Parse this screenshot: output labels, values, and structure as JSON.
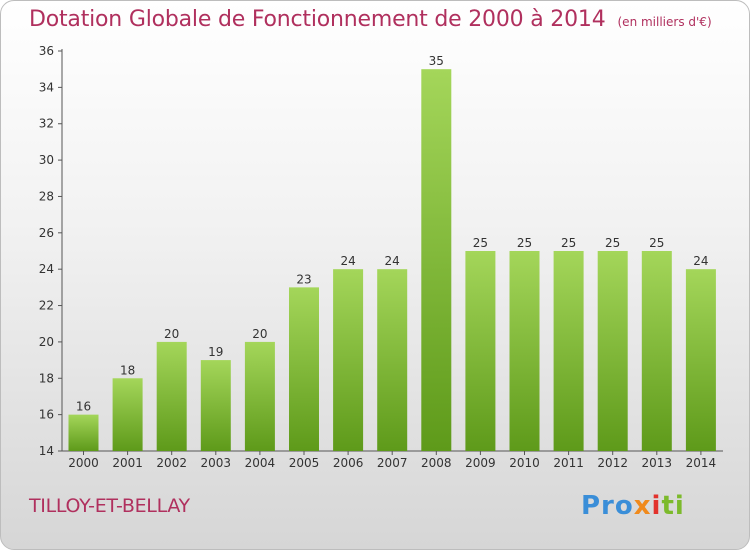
{
  "title": "Dotation Globale de Fonctionnement de 2000 à 2014",
  "unit": "(en milliers d'€)",
  "commune": "TILLOY-ET-BELLAY",
  "logo": {
    "p1": "Pro",
    "p2": "x",
    "p3": "i",
    "p4": "ti"
  },
  "colors": {
    "title": "#b0305e",
    "bar_top": "#a4d65a",
    "bar_bottom": "#5e9a1a"
  },
  "chart_data": {
    "type": "bar",
    "title": "Dotation Globale de Fonctionnement de 2000 à 2014",
    "categories": [
      "2000",
      "2001",
      "2002",
      "2003",
      "2004",
      "2005",
      "2006",
      "2007",
      "2008",
      "2009",
      "2010",
      "2011",
      "2012",
      "2013",
      "2014"
    ],
    "values": [
      16,
      18,
      20,
      19,
      20,
      23,
      24,
      24,
      35,
      25,
      25,
      25,
      25,
      25,
      24
    ],
    "ylim": [
      14,
      36
    ],
    "yticks": [
      14,
      16,
      18,
      20,
      22,
      24,
      26,
      28,
      30,
      32,
      34,
      36
    ],
    "grid": false
  }
}
